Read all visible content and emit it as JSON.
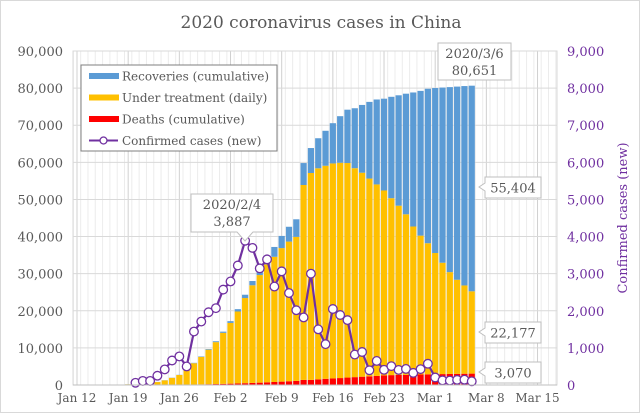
{
  "chart_data": {
    "type": "bar",
    "title": "2020 coronavirus cases in China",
    "ylabel": "",
    "y2label": "Confirmed cases (new)",
    "ylim": [
      0,
      90000
    ],
    "y2lim": [
      0,
      9000
    ],
    "yticks": [
      "0",
      "10,000",
      "20,000",
      "30,000",
      "40,000",
      "50,000",
      "60,000",
      "70,000",
      "80,000",
      "90,000"
    ],
    "y2ticks": [
      "0",
      "1,000",
      "2,000",
      "3,000",
      "4,000",
      "5,000",
      "6,000",
      "7,000",
      "8,000",
      "9,000"
    ],
    "xticks": [
      "Jan 12",
      "Jan 19",
      "Jan 26",
      "Feb 2",
      "Feb 9",
      "Feb 16",
      "Feb 23",
      "Mar 1",
      "Mar 8",
      "Mar 15"
    ],
    "grid": true,
    "legend_position": "top-left",
    "colors": {
      "recoveries": "#5b9bd5",
      "treatment": "#ffc000",
      "deaths": "#ff0000",
      "new_cases": "#7030a0"
    },
    "legend": [
      {
        "label": "Recoveries (cumulative)",
        "key": "recoveries"
      },
      {
        "label": "Under treatment (daily)",
        "key": "treatment"
      },
      {
        "label": "Deaths (cumulative)",
        "key": "deaths"
      },
      {
        "label": "Confirmed cases (new)",
        "key": "new_cases"
      }
    ],
    "start_date": "2020-01-12",
    "dates": [
      "Jan 12",
      "Jan 13",
      "Jan 14",
      "Jan 15",
      "Jan 16",
      "Jan 17",
      "Jan 18",
      "Jan 19",
      "Jan 20",
      "Jan 21",
      "Jan 22",
      "Jan 23",
      "Jan 24",
      "Jan 25",
      "Jan 26",
      "Jan 27",
      "Jan 28",
      "Jan 29",
      "Jan 30",
      "Jan 31",
      "Feb 1",
      "Feb 2",
      "Feb 3",
      "Feb 4",
      "Feb 5",
      "Feb 6",
      "Feb 7",
      "Feb 8",
      "Feb 9",
      "Feb 10",
      "Feb 11",
      "Feb 12",
      "Feb 13",
      "Feb 14",
      "Feb 15",
      "Feb 16",
      "Feb 17",
      "Feb 18",
      "Feb 19",
      "Feb 20",
      "Feb 21",
      "Feb 22",
      "Feb 23",
      "Feb 24",
      "Feb 25",
      "Feb 26",
      "Feb 27",
      "Feb 28",
      "Feb 29",
      "Mar 1",
      "Mar 2",
      "Mar 3",
      "Mar 4",
      "Mar 5",
      "Mar 6"
    ],
    "series": [
      {
        "name": "Deaths (cumulative)",
        "key": "deaths",
        "values": [
          1,
          1,
          1,
          2,
          2,
          2,
          3,
          3,
          6,
          9,
          17,
          25,
          41,
          56,
          80,
          106,
          132,
          170,
          213,
          259,
          304,
          361,
          425,
          490,
          563,
          636,
          722,
          811,
          908,
          1016,
          1113,
          1367,
          1380,
          1523,
          1665,
          1770,
          1868,
          2004,
          2118,
          2236,
          2345,
          2442,
          2592,
          2663,
          2715,
          2744,
          2788,
          2835,
          2870,
          2912,
          2943,
          2981,
          3012,
          3042,
          3070
        ]
      },
      {
        "name": "Under treatment (daily)",
        "key": "treatment",
        "values": [
          40,
          40,
          40,
          39,
          43,
          55,
          108,
          178,
          260,
          406,
          529,
          771,
          1208,
          1870,
          2613,
          4349,
          5739,
          7417,
          9308,
          11289,
          13748,
          16369,
          19381,
          22942,
          26302,
          28985,
          31774,
          33738,
          35982,
          37626,
          38800,
          52526,
          55748,
          56873,
          57416,
          57934,
          58016,
          57805,
          56303,
          54965,
          53284,
          51606,
          49824,
          47672,
          45604,
          43258,
          39919,
          37414,
          35329,
          32652,
          30004,
          27433,
          25352,
          23784,
          22177
        ]
      },
      {
        "name": "Recoveries (cumulative)",
        "key": "recoveries",
        "values": [
          0,
          0,
          0,
          0,
          0,
          5,
          10,
          17,
          25,
          25,
          25,
          34,
          38,
          49,
          51,
          60,
          103,
          124,
          171,
          243,
          328,
          475,
          632,
          892,
          1153,
          1540,
          2050,
          2649,
          3281,
          3996,
          4740,
          5911,
          6723,
          8096,
          9419,
          10844,
          12552,
          14376,
          16155,
          18264,
          20659,
          22888,
          24734,
          27323,
          29745,
          32495,
          36117,
          39002,
          41625,
          44462,
          47204,
          49856,
          52045,
          53726,
          55404
        ]
      },
      {
        "name": "Confirmed cases (new)",
        "key": "new_cases",
        "axis": "right",
        "values": [
          null,
          null,
          null,
          null,
          null,
          null,
          null,
          null,
          60,
          110,
          110,
          250,
          420,
          660,
          770,
          500,
          1440,
          1710,
          1960,
          2070,
          2570,
          2790,
          3220,
          3887,
          3694,
          3143,
          3385,
          2652,
          3062,
          2478,
          2015,
          1820,
          3000,
          1500,
          1100,
          2048,
          1886,
          1749,
          820,
          889,
          397,
          648,
          409,
          508,
          406,
          433,
          327,
          427,
          573,
          202,
          125,
          119,
          139,
          143,
          99
        ]
      }
    ],
    "annotations": [
      {
        "date": "2020/2/4",
        "value": "3,887",
        "text1": "2020/2/4",
        "text2": "3,887"
      },
      {
        "date": "2020/3/6",
        "value": "80,651",
        "text1": "2020/3/6",
        "text2": "80,651"
      },
      {
        "text": "55,404"
      },
      {
        "text": "22,177"
      },
      {
        "text": "3,070"
      }
    ]
  }
}
